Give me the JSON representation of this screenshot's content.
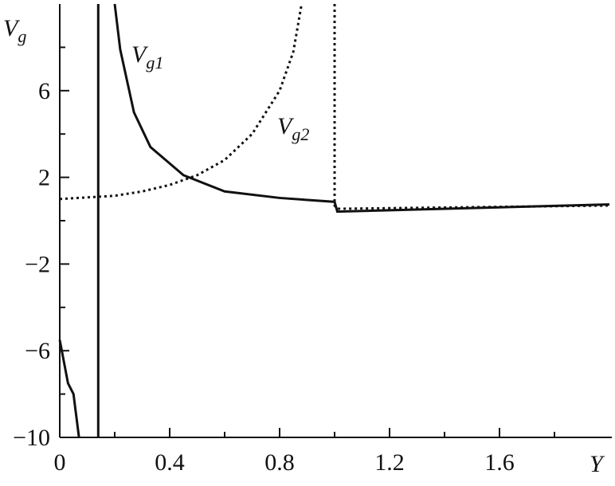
{
  "chart_data": {
    "type": "line",
    "ylabel": {
      "base": "V",
      "sub": "g"
    },
    "xlabel": "Y",
    "annotations": [
      {
        "base": "V",
        "sub": "g1"
      },
      {
        "base": "V",
        "sub": "g2"
      }
    ],
    "xlim": [
      0,
      2
    ],
    "ylim": [
      -10,
      10
    ],
    "xticks": [
      0,
      0.4,
      0.8,
      1.2,
      1.6
    ],
    "xminorticks": [
      0.2,
      0.6,
      1.0,
      1.4,
      1.8
    ],
    "yticks": [
      {
        "value": -10,
        "label": "−10"
      },
      {
        "value": -6,
        "label": "−6"
      },
      {
        "value": -2,
        "label": "−2"
      },
      2,
      6
    ],
    "yminorticks": [
      -8,
      -4,
      0,
      4,
      8
    ],
    "grid": false,
    "series": [
      {
        "color": "#111111",
        "dash": "solid",
        "x": [
          0,
          0.03,
          0.05,
          0.07,
          null,
          0.14,
          0.14,
          null,
          0.2,
          0.22,
          0.27,
          0.33,
          0.45,
          0.6,
          0.8,
          1.0,
          1.01,
          2.0
        ],
        "values": [
          -5.5,
          -7.5,
          -8.0,
          -10,
          null,
          -10,
          10,
          null,
          10,
          7.9,
          5.0,
          3.4,
          2.1,
          1.35,
          1.05,
          0.87,
          0.42,
          0.75
        ]
      },
      {
        "color": "#111111",
        "dash": "dotted",
        "x": [
          0,
          0.2,
          0.3,
          0.4,
          0.5,
          0.6,
          0.7,
          0.8,
          0.85,
          0.88,
          null,
          1.0,
          1.0,
          1.01,
          2.0
        ],
        "values": [
          1.0,
          1.15,
          1.35,
          1.65,
          2.1,
          2.8,
          4.0,
          6.0,
          7.8,
          10,
          null,
          10,
          0.7,
          0.55,
          0.7
        ]
      }
    ]
  }
}
